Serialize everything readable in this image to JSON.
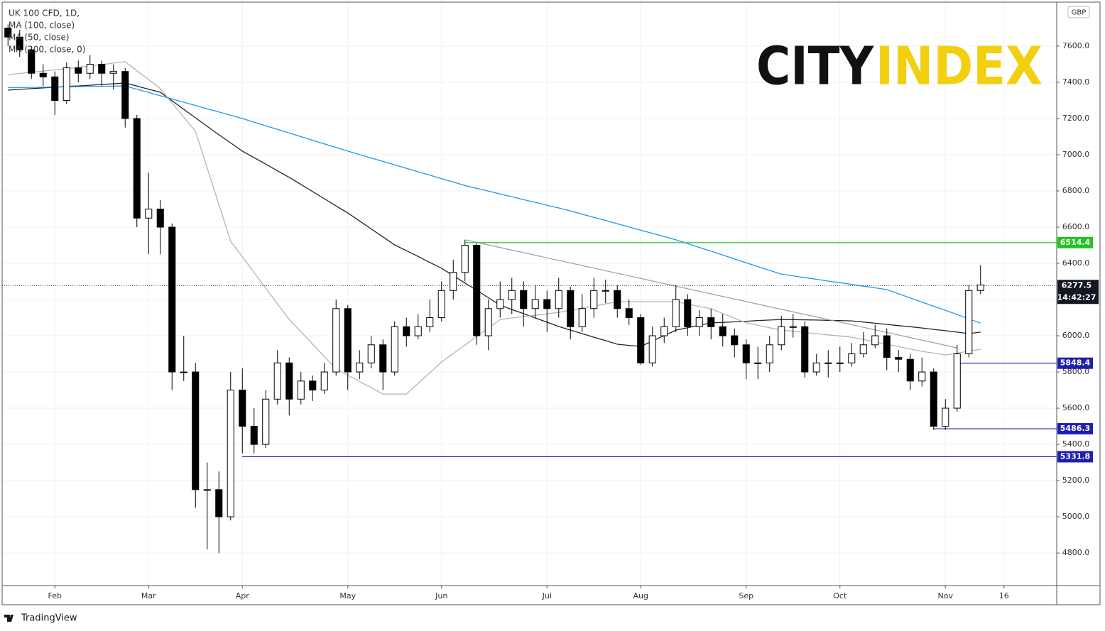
{
  "chart_data": {
    "type": "candlestick",
    "title": "UK 100 CFD, 1D,",
    "currency": "GBP",
    "categories": [
      null,
      null,
      null,
      null,
      "Feb",
      null,
      null,
      null,
      null,
      null,
      null,
      null,
      "Mar",
      null,
      null,
      null,
      null,
      null,
      null,
      null,
      "Apr",
      null,
      null,
      null,
      null,
      null,
      null,
      null,
      null,
      "May",
      null,
      null,
      null,
      null,
      null,
      null,
      null,
      "Jun",
      null,
      null,
      null,
      null,
      null,
      null,
      null,
      null,
      "Jul",
      null,
      null,
      null,
      null,
      null,
      null,
      null,
      "Aug",
      null,
      null,
      null,
      null,
      null,
      null,
      null,
      null,
      "Sep",
      null,
      null,
      null,
      null,
      null,
      null,
      null,
      "Oct",
      null,
      null,
      null,
      null,
      null,
      null,
      null,
      null,
      "Nov",
      null,
      null,
      null,
      null,
      "16",
      null,
      null,
      null,
      null
    ],
    "open": [
      7700,
      7650,
      7580,
      7450,
      7430,
      7300,
      7480,
      7450,
      7500,
      7450,
      7460,
      7200,
      6650,
      6700,
      6600,
      5800,
      5800,
      5150,
      5150,
      5000,
      5700,
      5500,
      5400,
      5650,
      5850,
      5650,
      5750,
      5700,
      5800,
      6150,
      5800,
      5850,
      5950,
      5800,
      6050,
      6000,
      6050,
      6100,
      6250,
      6350,
      6500,
      6000,
      6150,
      6200,
      6250,
      6150,
      6200,
      6150,
      6250,
      6050,
      6150,
      6250,
      6250,
      6150,
      6100,
      5850,
      6000,
      6050,
      6200,
      6050,
      6100,
      6050,
      6000,
      5950,
      5850,
      5850,
      5950,
      6050,
      6050,
      5800,
      5850,
      5850,
      5850,
      5900,
      5950,
      6000,
      5880,
      5870,
      5750,
      5800,
      5500,
      5600,
      5900,
      6250,
      null,
      null,
      null,
      null,
      null,
      null
    ],
    "high": [
      7720,
      7690,
      7600,
      7500,
      7460,
      7510,
      7520,
      7550,
      7520,
      7500,
      7480,
      7220,
      6900,
      6750,
      6620,
      6000,
      5850,
      5300,
      5250,
      5800,
      5820,
      5600,
      5700,
      5920,
      5880,
      5800,
      5780,
      5850,
      6200,
      6170,
      5920,
      6000,
      5980,
      6080,
      6100,
      6120,
      6200,
      6300,
      6420,
      6530,
      6510,
      6200,
      6300,
      6320,
      6300,
      6280,
      6250,
      6320,
      6270,
      6230,
      6320,
      6310,
      6280,
      6200,
      6120,
      6050,
      6100,
      6280,
      6230,
      6140,
      6150,
      6120,
      6040,
      5980,
      5940,
      6000,
      6110,
      6120,
      6080,
      5900,
      5920,
      5940,
      5960,
      6020,
      6060,
      6040,
      5920,
      5900,
      5880,
      5820,
      5650,
      5950,
      6280,
      6390,
      null,
      null,
      null,
      null,
      null,
      null
    ],
    "low": [
      7600,
      7540,
      7420,
      7380,
      7220,
      7280,
      7400,
      7420,
      7380,
      7360,
      7150,
      6600,
      6450,
      6450,
      5700,
      5750,
      5050,
      4820,
      4800,
      4980,
      5350,
      5350,
      5380,
      5620,
      5560,
      5620,
      5640,
      5680,
      5780,
      5700,
      5760,
      5820,
      5700,
      5780,
      5940,
      5980,
      6020,
      6080,
      6200,
      6300,
      5950,
      5920,
      6100,
      6120,
      6050,
      6100,
      6020,
      6100,
      5980,
      6020,
      6100,
      6180,
      6100,
      6060,
      5840,
      5830,
      5960,
      6020,
      6000,
      6000,
      5980,
      5940,
      5880,
      5760,
      5760,
      5800,
      5920,
      5990,
      5770,
      5780,
      5770,
      5800,
      5830,
      5880,
      5930,
      5810,
      5800,
      5700,
      5720,
      5480,
      5480,
      5580,
      5880,
      6230,
      null,
      null,
      null,
      null,
      null,
      null
    ],
    "close": [
      7650,
      7580,
      7450,
      7430,
      7300,
      7480,
      7450,
      7500,
      7450,
      7460,
      7200,
      6650,
      6700,
      6600,
      5800,
      5800,
      5150,
      5150,
      5000,
      5700,
      5500,
      5400,
      5650,
      5850,
      5650,
      5750,
      5700,
      5800,
      6150,
      5800,
      5850,
      5950,
      5800,
      6050,
      6000,
      6050,
      6100,
      6250,
      6350,
      6500,
      6000,
      6150,
      6200,
      6250,
      6150,
      6200,
      6150,
      6250,
      6050,
      6150,
      6250,
      6250,
      6150,
      6100,
      5850,
      6000,
      6050,
      6200,
      6050,
      6100,
      6050,
      6000,
      5950,
      5850,
      5850,
      5950,
      6050,
      6050,
      5800,
      5850,
      5850,
      5850,
      5900,
      5950,
      6000,
      5880,
      5870,
      5750,
      5800,
      5500,
      5600,
      5900,
      6250,
      6280,
      null,
      null,
      null,
      null,
      null,
      null
    ],
    "series": [
      {
        "name": "MA (100, close)",
        "color": "#222222",
        "values": [
          7357,
          7361,
          7365,
          7369,
          7373,
          7377,
          7380,
          7384,
          7388,
          7392,
          7396,
          7379,
          7362,
          7345,
          7298,
          7251,
          7204,
          7157,
          7110,
          7065,
          7020,
          6984,
          6948,
          6911,
          6875,
          6836,
          6796,
          6757,
          6717,
          6678,
          6634,
          6590,
          6546,
          6502,
          6470,
          6438,
          6405,
          6373,
          6332,
          6291,
          6251,
          6210,
          6169,
          6145,
          6122,
          6098,
          6075,
          6051,
          6031,
          6012,
          5992,
          5973,
          5953,
          5947,
          5941,
          5971,
          6001,
          6031,
          6044,
          6058,
          6071,
          6074,
          6077,
          6080,
          6084,
          6087,
          6090,
          6089,
          6088,
          6087,
          6085,
          6084,
          6082,
          6076,
          6069,
          6063,
          6056,
          6050,
          6043,
          6035,
          6028,
          6020,
          6012,
          6020,
          null,
          null,
          null,
          null,
          null,
          null
        ]
      },
      {
        "name": "MA (50, close)",
        "color": "#b4b4b4",
        "values": [
          7443,
          7449,
          7456,
          7462,
          7469,
          7475,
          7483,
          7491,
          7498,
          7506,
          7514,
          7464,
          7415,
          7365,
          7286,
          7208,
          7129,
          6927,
          6724,
          6522,
          6436,
          6349,
          6263,
          6176,
          6090,
          6022,
          5953,
          5885,
          5816,
          5782,
          5747,
          5713,
          5678,
          5678,
          5678,
          5737,
          5796,
          5855,
          5902,
          5949,
          5996,
          6043,
          6090,
          6098,
          6106,
          6113,
          6121,
          6129,
          6141,
          6153,
          6164,
          6176,
          6188,
          6188,
          6188,
          6188,
          6188,
          6188,
          6175,
          6162,
          6149,
          6123,
          6097,
          6071,
          6058,
          6044,
          6031,
          6025,
          6018,
          6012,
          6005,
          5999,
          5992,
          5979,
          5966,
          5953,
          5940,
          5927,
          5914,
          5904,
          5894,
          5904,
          5915,
          5925,
          null,
          null,
          null,
          null,
          null,
          null
        ]
      },
      {
        "name": "MA (200, close, 0)",
        "color": "#2196f3",
        "values": [
          7370,
          7371,
          7372,
          7373,
          7374,
          7375,
          7376,
          7377,
          7378,
          7379,
          7380,
          7362,
          7344,
          7326,
          7308,
          7290,
          7272,
          7254,
          7236,
          7218,
          7200,
          7180,
          7160,
          7140,
          7120,
          7100,
          7080,
          7060,
          7040,
          7020,
          7001,
          6982,
          6963,
          6944,
          6925,
          6906,
          6887,
          6868,
          6849,
          6830,
          6814,
          6799,
          6783,
          6768,
          6752,
          6737,
          6721,
          6706,
          6690,
          6672,
          6654,
          6637,
          6619,
          6601,
          6583,
          6566,
          6548,
          6530,
          6509,
          6488,
          6467,
          6446,
          6424,
          6403,
          6382,
          6361,
          6340,
          6331,
          6321,
          6312,
          6302,
          6293,
          6284,
          6274,
          6265,
          6255,
          6232,
          6209,
          6186,
          6163,
          6140,
          6117,
          6093,
          6070,
          null,
          null,
          null,
          null,
          null,
          null
        ]
      }
    ],
    "levels": [
      {
        "value": 6514.4,
        "color": "#22c422"
      },
      {
        "value": 5848.4,
        "color": "#1f1fb4"
      },
      {
        "value": 5486.3,
        "color": "#1f1fb4"
      },
      {
        "value": 5331.8,
        "color": "#1f1fb4"
      }
    ],
    "trendline": {
      "values": [
        6530,
        5933
      ],
      "color": "#9e9e9e"
    },
    "last_price": {
      "value": 6277.5,
      "time": "14:42:27"
    },
    "ylim": [
      4620,
      7843
    ],
    "yticks": [
      {
        "value": 4800,
        "label": "4800.0"
      },
      {
        "value": 5000,
        "label": "5000.0"
      },
      {
        "value": 5200,
        "label": "5200.0"
      },
      {
        "value": 5400,
        "label": "5400.0"
      },
      {
        "value": 5600,
        "label": "5600.0"
      },
      {
        "value": 5800,
        "label": "5800.0"
      },
      {
        "value": 6000,
        "label": "6000.0"
      },
      {
        "value": 6200,
        "label": "6200.0"
      },
      {
        "value": 6400,
        "label": "6400.0"
      },
      {
        "value": 6600,
        "label": "6600.0"
      },
      {
        "value": 6800,
        "label": "6800.0"
      },
      {
        "value": 7000,
        "label": "7000.0"
      },
      {
        "value": 7200,
        "label": "7200.0"
      },
      {
        "value": 7400,
        "label": "7400.0"
      },
      {
        "value": 7600,
        "label": "7600.0"
      }
    ],
    "grid": true,
    "up_color": "#ffffff",
    "down_color": "#000000",
    "logo": {
      "first": "CITY",
      "second": "INDEX",
      "first_color": "#111111",
      "second_color": "#f2cf0f"
    },
    "footer": "TradingView"
  }
}
